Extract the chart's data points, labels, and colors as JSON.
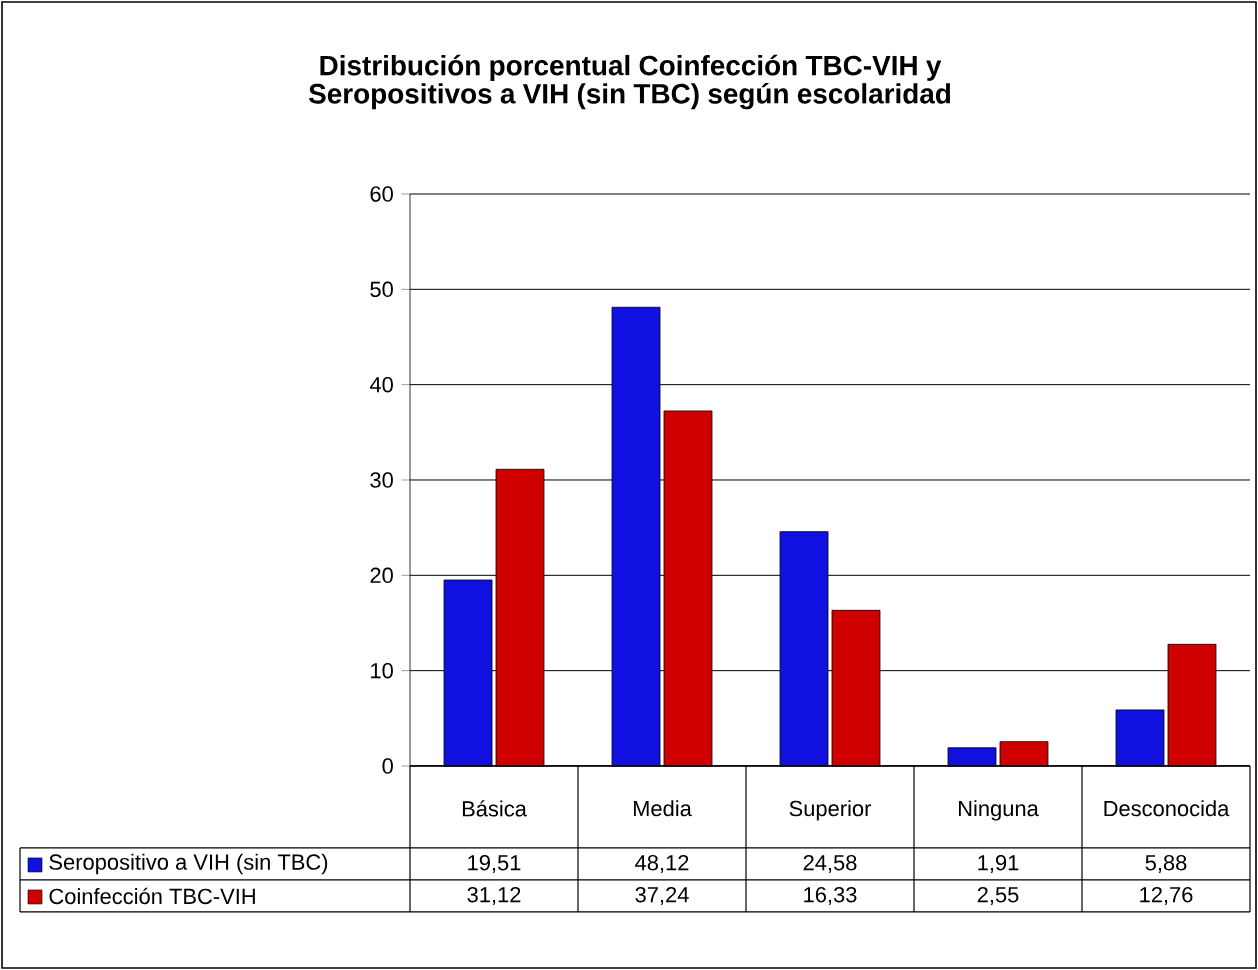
{
  "chart_data": {
    "type": "bar",
    "title": "Distribución porcentual Coinfección TBC-VIH y\nSeropositivos a VIH (sin TBC) según escolaridad",
    "categories": [
      "Básica",
      "Media",
      "Superior",
      "Ninguna",
      "Desconocida"
    ],
    "series": [
      {
        "name": "Seropositivo a VIH (sin TBC)",
        "color": "#1010e0",
        "values": [
          19.51,
          48.12,
          24.58,
          1.91,
          5.88
        ],
        "value_labels": [
          "19,51",
          "48,12",
          "24,58",
          "1,91",
          "5,88"
        ]
      },
      {
        "name": "Coinfección TBC-VIH",
        "color": "#d00000",
        "values": [
          31.12,
          37.24,
          16.33,
          2.55,
          12.76
        ],
        "value_labels": [
          "31,12",
          "37,24",
          "16,33",
          "2,55",
          "12,76"
        ]
      }
    ],
    "ylim": [
      0,
      60
    ],
    "yticks": [
      0,
      10,
      20,
      30,
      40,
      50,
      60
    ],
    "grid": "y",
    "legend": "bottom left"
  }
}
